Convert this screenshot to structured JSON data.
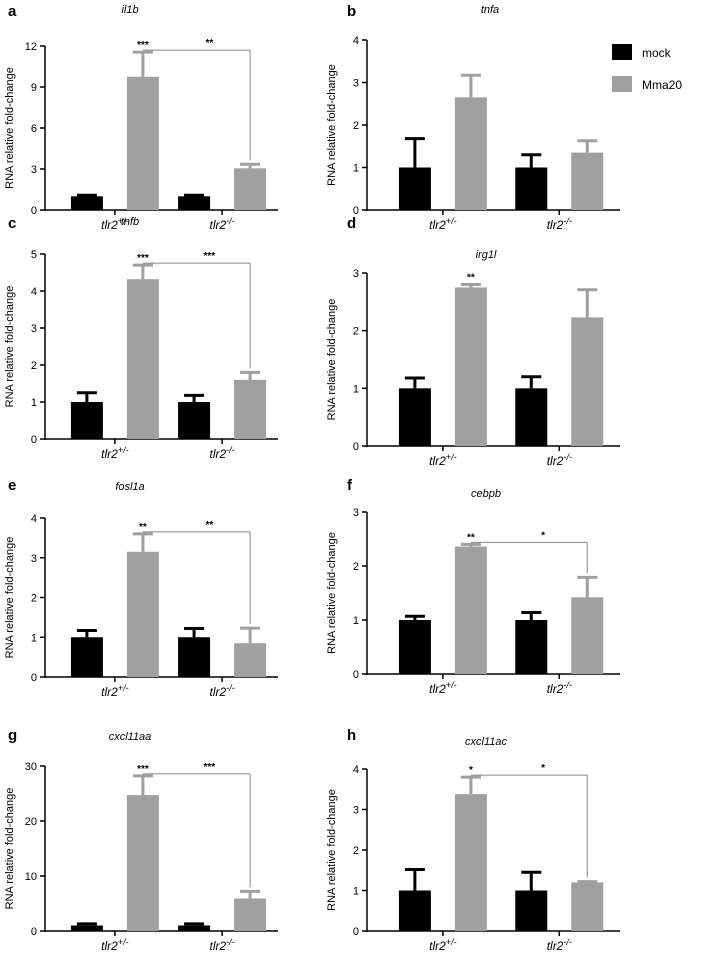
{
  "legend": {
    "items": [
      {
        "label": "mock",
        "color": "#000000"
      },
      {
        "label": "Mma20",
        "color": "#a0a0a0"
      }
    ]
  },
  "chart_data": [
    {
      "panel": "a",
      "type": "bar",
      "title": "il1b",
      "ylabel": "RNA relative fold-change",
      "categories": [
        "tlr2+/-",
        "tlr2-/-"
      ],
      "category_base": "tlr2",
      "category_sups": [
        "+/-",
        "-/-"
      ],
      "ylim": [
        0,
        12
      ],
      "yticks": [
        0,
        3,
        6,
        9,
        12
      ],
      "series": [
        {
          "name": "mock",
          "values": [
            1.0,
            1.0
          ],
          "errors": [
            0.08,
            0.08
          ]
        },
        {
          "name": "Mma20",
          "values": [
            9.75,
            3.05
          ],
          "errors": [
            1.8,
            0.3
          ]
        }
      ],
      "annotations": [
        {
          "text": "***",
          "target": [
            0,
            1
          ]
        },
        {
          "text": "**",
          "bracket": [
            [
              0,
              1
            ],
            [
              1,
              1
            ]
          ]
        }
      ]
    },
    {
      "panel": "b",
      "type": "bar",
      "title": "tnfa",
      "ylabel": "RNA relative fold-change",
      "categories": [
        "tlr2+/-",
        "tlr2-/-"
      ],
      "category_base": "tlr2",
      "category_sups": [
        "+/-",
        "-/-"
      ],
      "ylim": [
        0,
        4
      ],
      "yticks": [
        0,
        1,
        2,
        3,
        4
      ],
      "series": [
        {
          "name": "mock",
          "values": [
            1.0,
            1.0
          ],
          "errors": [
            0.68,
            0.3
          ]
        },
        {
          "name": "Mma20",
          "values": [
            2.65,
            1.35
          ],
          "errors": [
            0.52,
            0.28
          ]
        }
      ],
      "annotations": []
    },
    {
      "panel": "c",
      "type": "bar",
      "title": "tnfb",
      "ylabel": "RNA relative fold-change",
      "categories": [
        "tlr2+/-",
        "tlr2-/-"
      ],
      "category_base": "tlr2",
      "category_sups": [
        "+/-",
        "-/-"
      ],
      "ylim": [
        0,
        5
      ],
      "yticks": [
        0,
        1,
        2,
        3,
        4,
        5
      ],
      "series": [
        {
          "name": "mock",
          "values": [
            1.0,
            1.0
          ],
          "errors": [
            0.25,
            0.18
          ]
        },
        {
          "name": "Mma20",
          "values": [
            4.32,
            1.6
          ],
          "errors": [
            0.38,
            0.2
          ]
        }
      ],
      "annotations": [
        {
          "text": "***",
          "target": [
            0,
            1
          ]
        },
        {
          "text": "***",
          "bracket": [
            [
              0,
              1
            ],
            [
              1,
              1
            ]
          ]
        }
      ]
    },
    {
      "panel": "d",
      "type": "bar",
      "title": "irg1l",
      "ylabel": "RNA relative fold-change",
      "categories": [
        "tlr2+/-",
        "tlr2-/-"
      ],
      "category_base": "tlr2",
      "category_sups": [
        "+/-",
        "-/-"
      ],
      "ylim": [
        0,
        3
      ],
      "yticks": [
        0,
        1,
        2,
        3
      ],
      "series": [
        {
          "name": "mock",
          "values": [
            1.0,
            1.0
          ],
          "errors": [
            0.18,
            0.2
          ]
        },
        {
          "name": "Mma20",
          "values": [
            2.75,
            2.23
          ],
          "errors": [
            0.05,
            0.48
          ]
        }
      ],
      "annotations": [
        {
          "text": "**",
          "target": [
            0,
            1
          ]
        }
      ]
    },
    {
      "panel": "e",
      "type": "bar",
      "title": "fosl1a",
      "ylabel": "RNA relative fold-change",
      "categories": [
        "tlr2+/-",
        "tlr2-/-"
      ],
      "category_base": "tlr2",
      "category_sups": [
        "+/-",
        "-/-"
      ],
      "ylim": [
        0,
        4
      ],
      "yticks": [
        0,
        1,
        2,
        3,
        4
      ],
      "series": [
        {
          "name": "mock",
          "values": [
            1.0,
            1.0
          ],
          "errors": [
            0.17,
            0.22
          ]
        },
        {
          "name": "Mma20",
          "values": [
            3.15,
            0.85
          ],
          "errors": [
            0.45,
            0.38
          ]
        }
      ],
      "annotations": [
        {
          "text": "**",
          "target": [
            0,
            1
          ]
        },
        {
          "text": "**",
          "bracket": [
            [
              0,
              1
            ],
            [
              1,
              1
            ]
          ]
        }
      ]
    },
    {
      "panel": "f",
      "type": "bar",
      "title": "cebpb",
      "ylabel": "RNA relative fold-change",
      "categories": [
        "tlr2+/-",
        "tlr2-/-"
      ],
      "category_base": "tlr2",
      "category_sups": [
        "+/-",
        "-/-"
      ],
      "ylim": [
        0,
        3
      ],
      "yticks": [
        0,
        1,
        2,
        3
      ],
      "series": [
        {
          "name": "mock",
          "values": [
            1.0,
            1.0
          ],
          "errors": [
            0.07,
            0.14
          ]
        },
        {
          "name": "Mma20",
          "values": [
            2.36,
            1.42
          ],
          "errors": [
            0.04,
            0.37
          ]
        }
      ],
      "annotations": [
        {
          "text": "**",
          "target": [
            0,
            1
          ]
        },
        {
          "text": "*",
          "bracket": [
            [
              0,
              1
            ],
            [
              1,
              1
            ]
          ]
        }
      ]
    },
    {
      "panel": "g",
      "type": "bar",
      "title": "cxcl11aa",
      "ylabel": "RNA relative fold-change",
      "categories": [
        "tlr2+/-",
        "tlr2-/-"
      ],
      "category_base": "tlr2",
      "category_sups": [
        "+/-",
        "-/-"
      ],
      "ylim": [
        0,
        30
      ],
      "yticks": [
        0,
        10,
        20,
        30
      ],
      "series": [
        {
          "name": "mock",
          "values": [
            1.0,
            1.0
          ],
          "errors": [
            0.3,
            0.3
          ]
        },
        {
          "name": "Mma20",
          "values": [
            24.7,
            5.9
          ],
          "errors": [
            3.5,
            1.3
          ]
        }
      ],
      "annotations": [
        {
          "text": "***",
          "target": [
            0,
            1
          ]
        },
        {
          "text": "***",
          "bracket": [
            [
              0,
              1
            ],
            [
              1,
              1
            ]
          ]
        }
      ]
    },
    {
      "panel": "h",
      "type": "bar",
      "title": "cxcl11ac",
      "ylabel": "RNA relative fold-change",
      "categories": [
        "tlr2+/-",
        "tlr2-/-"
      ],
      "category_base": "tlr2",
      "category_sups": [
        "+/-",
        "-/-"
      ],
      "ylim": [
        0,
        4
      ],
      "yticks": [
        0,
        1,
        2,
        3,
        4
      ],
      "series": [
        {
          "name": "mock",
          "values": [
            1.0,
            1.0
          ],
          "errors": [
            0.52,
            0.45
          ]
        },
        {
          "name": "Mma20",
          "values": [
            3.38,
            1.2
          ],
          "errors": [
            0.42,
            0.02
          ]
        }
      ],
      "annotations": [
        {
          "text": "*",
          "target": [
            0,
            1
          ]
        },
        {
          "text": "*",
          "bracket": [
            [
              0,
              1
            ],
            [
              1,
              1
            ]
          ]
        }
      ]
    }
  ]
}
